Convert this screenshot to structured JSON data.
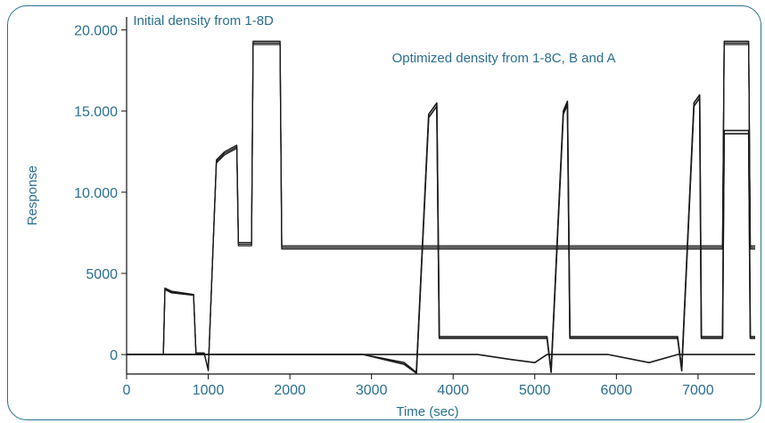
{
  "chart_data": {
    "type": "line",
    "title": "",
    "xlabel": "Time (sec)",
    "ylabel": "Response",
    "xlim": [
      0,
      7700
    ],
    "ylim": [
      -1200,
      20800
    ],
    "x_ticks": [
      0,
      1000,
      2000,
      3000,
      4000,
      5000,
      6000,
      7000
    ],
    "x_tick_labels": [
      "0",
      "1000",
      "2000",
      "3000",
      "4000",
      "5000",
      "6000",
      "7000"
    ],
    "y_ticks": [
      0,
      5000,
      10000,
      15000,
      20000
    ],
    "y_tick_labels": [
      "0",
      "5000",
      "10.000",
      "15.000",
      "20.000"
    ],
    "grid": false,
    "annotations": [
      {
        "text": "Initial density from 1-8D",
        "x": 80,
        "y": 20300
      },
      {
        "text": "Optimized density from 1-8C, B and A",
        "x": 3250,
        "y": 18000
      }
    ],
    "series": [
      {
        "points": [
          [
            0,
            0
          ],
          [
            450,
            0
          ],
          [
            470,
            4100
          ],
          [
            550,
            3900
          ],
          [
            820,
            3700
          ],
          [
            850,
            100
          ],
          [
            950,
            100
          ],
          [
            1000,
            -1000
          ],
          [
            1100,
            12000
          ],
          [
            1200,
            12500
          ],
          [
            1350,
            12900
          ],
          [
            1370,
            6900
          ],
          [
            1530,
            6900
          ],
          [
            1550,
            19300
          ],
          [
            1880,
            19300
          ],
          [
            1900,
            6700
          ],
          [
            3800,
            6700
          ],
          [
            7300,
            6700
          ],
          [
            7320,
            19300
          ],
          [
            7620,
            19300
          ],
          [
            7640,
            6700
          ],
          [
            7700,
            6700
          ]
        ]
      },
      {
        "points": [
          [
            0,
            0
          ],
          [
            450,
            0
          ],
          [
            470,
            4000
          ],
          [
            550,
            3800
          ],
          [
            820,
            3650
          ],
          [
            850,
            50
          ],
          [
            950,
            50
          ],
          [
            1000,
            -900
          ],
          [
            1100,
            11800
          ],
          [
            1200,
            12300
          ],
          [
            1350,
            12700
          ],
          [
            1370,
            6700
          ],
          [
            1530,
            6700
          ],
          [
            1550,
            19100
          ],
          [
            1880,
            19100
          ],
          [
            1900,
            6500
          ],
          [
            3800,
            6500
          ],
          [
            7300,
            6500
          ],
          [
            7320,
            19100
          ],
          [
            7620,
            19100
          ],
          [
            7640,
            6500
          ],
          [
            7700,
            6500
          ]
        ]
      },
      {
        "points": [
          [
            0,
            0
          ],
          [
            450,
            0
          ],
          [
            470,
            4050
          ],
          [
            550,
            3850
          ],
          [
            820,
            3680
          ],
          [
            850,
            80
          ],
          [
            950,
            80
          ],
          [
            1000,
            -950
          ],
          [
            1100,
            11900
          ],
          [
            1200,
            12400
          ],
          [
            1350,
            12800
          ],
          [
            1370,
            6800
          ],
          [
            1530,
            6800
          ],
          [
            1550,
            19200
          ],
          [
            1880,
            19200
          ],
          [
            1900,
            6600
          ],
          [
            3800,
            6600
          ],
          [
            7300,
            6600
          ],
          [
            7320,
            19200
          ],
          [
            7620,
            19200
          ],
          [
            7640,
            6600
          ],
          [
            7700,
            6600
          ]
        ]
      },
      {
        "points": [
          [
            0,
            0
          ],
          [
            2900,
            0
          ],
          [
            3400,
            -500
          ],
          [
            3550,
            -1100
          ],
          [
            3700,
            14800
          ],
          [
            3800,
            15500
          ],
          [
            3830,
            1000
          ],
          [
            5150,
            1000
          ],
          [
            5200,
            -1000
          ],
          [
            5350,
            15000
          ],
          [
            5400,
            15600
          ],
          [
            5430,
            1000
          ],
          [
            6750,
            1000
          ],
          [
            6800,
            -900
          ],
          [
            6950,
            15500
          ],
          [
            7020,
            16000
          ],
          [
            7040,
            1000
          ],
          [
            7300,
            1000
          ],
          [
            7320,
            13800
          ],
          [
            7620,
            13800
          ],
          [
            7640,
            1000
          ],
          [
            7700,
            1000
          ]
        ]
      },
      {
        "points": [
          [
            0,
            0
          ],
          [
            2900,
            0
          ],
          [
            3400,
            -600
          ],
          [
            3550,
            -1150
          ],
          [
            3700,
            14600
          ],
          [
            3800,
            15300
          ],
          [
            3830,
            1100
          ],
          [
            5150,
            1100
          ],
          [
            5200,
            -1100
          ],
          [
            5350,
            14800
          ],
          [
            5400,
            15400
          ],
          [
            5430,
            1100
          ],
          [
            6750,
            1100
          ],
          [
            6800,
            -1000
          ],
          [
            6950,
            15300
          ],
          [
            7020,
            15800
          ],
          [
            7040,
            1100
          ],
          [
            7300,
            1100
          ],
          [
            7320,
            13600
          ],
          [
            7620,
            13600
          ],
          [
            7640,
            1100
          ],
          [
            7700,
            1100
          ]
        ]
      },
      {
        "points": [
          [
            0,
            0
          ],
          [
            4300,
            0
          ],
          [
            4700,
            -300
          ],
          [
            5000,
            -500
          ],
          [
            5150,
            0
          ],
          [
            5900,
            0
          ],
          [
            6400,
            -500
          ],
          [
            6750,
            0
          ],
          [
            7700,
            0
          ]
        ]
      }
    ]
  }
}
